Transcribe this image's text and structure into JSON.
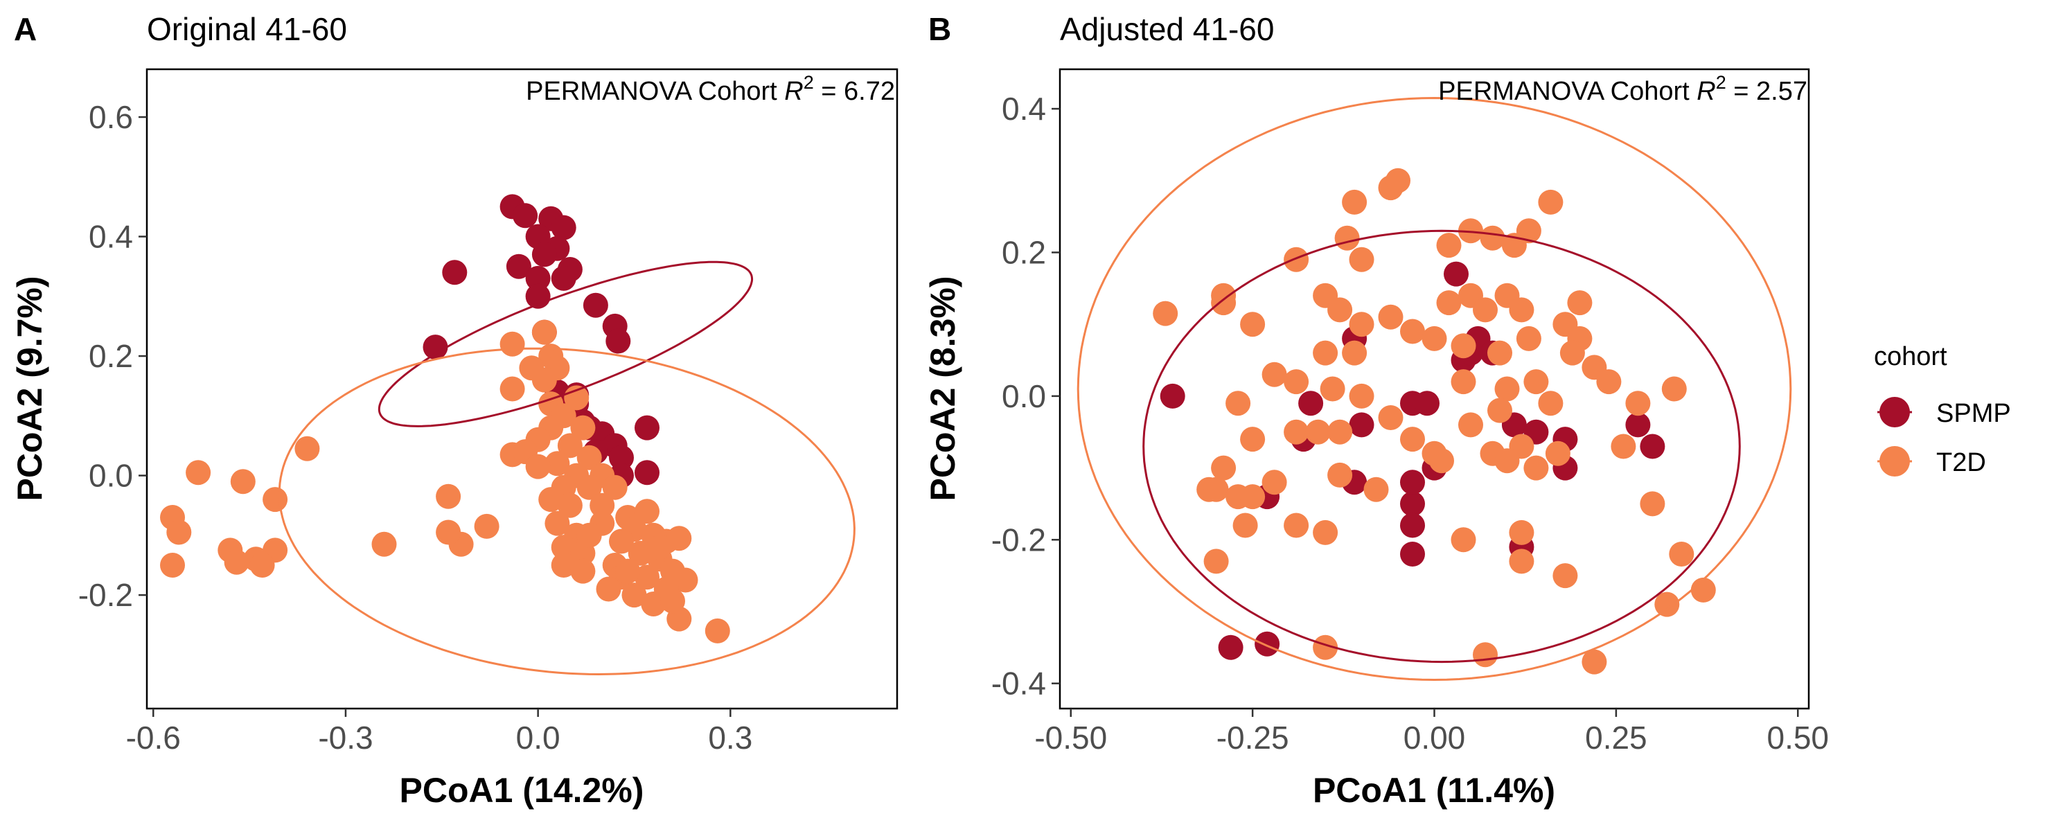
{
  "colors": {
    "SPMP": "#A50F2A",
    "T2D": "#F4834C",
    "axis_text": "#4D4D4D"
  },
  "legend": {
    "title": "cohort",
    "items": [
      {
        "label": "SPMP",
        "color": "#A50F2A"
      },
      {
        "label": "T2D",
        "color": "#F4834C"
      }
    ]
  },
  "chart_data": [
    {
      "type": "scatter",
      "panel_label": "A",
      "title": "Original 41-60",
      "annotation_prefix": "PERMANOVA Cohort ",
      "annotation_value": " = 6.72",
      "xlabel": "PCoA1 (14.2%)",
      "ylabel": "PCoA2 (9.7%)",
      "xlim": [
        -0.61,
        0.56
      ],
      "ylim": [
        -0.39,
        0.68
      ],
      "xticks": [
        -0.6,
        -0.3,
        0.0,
        0.3
      ],
      "xtick_labels": [
        "-0.6",
        "-0.3",
        "0.0",
        "0.3"
      ],
      "yticks": [
        -0.2,
        0.0,
        0.2,
        0.4,
        0.6
      ],
      "ytick_labels": [
        "-0.2",
        "0.0",
        "0.2",
        "0.4",
        "0.6"
      ],
      "grid": false,
      "ellipses": [
        {
          "series": "SPMP",
          "center": [
            0.043,
            0.22
          ],
          "semi_axes": [
            0.078,
            0.312
          ],
          "angle_deg": 112
        },
        {
          "series": "T2D",
          "center": [
            0.045,
            -0.06
          ],
          "semi_axes": [
            0.45,
            0.27
          ],
          "angle_deg": -6
        }
      ],
      "series": [
        {
          "name": "SPMP",
          "points": [
            [
              -0.04,
              0.45
            ],
            [
              -0.02,
              0.435
            ],
            [
              0.02,
              0.43
            ],
            [
              0.04,
              0.415
            ],
            [
              0.0,
              0.4
            ],
            [
              0.03,
              0.38
            ],
            [
              0.01,
              0.37
            ],
            [
              -0.03,
              0.35
            ],
            [
              0.05,
              0.345
            ],
            [
              -0.13,
              0.34
            ],
            [
              0.0,
              0.33
            ],
            [
              0.04,
              0.33
            ],
            [
              0.0,
              0.3
            ],
            [
              0.09,
              0.285
            ],
            [
              0.12,
              0.25
            ],
            [
              0.01,
              0.24
            ],
            [
              0.125,
              0.225
            ],
            [
              -0.16,
              0.215
            ],
            [
              0.03,
              0.14
            ],
            [
              0.06,
              0.135
            ],
            [
              0.06,
              0.12
            ],
            [
              0.03,
              0.115
            ],
            [
              0.05,
              0.105
            ],
            [
              0.07,
              0.09
            ],
            [
              0.08,
              0.08
            ],
            [
              0.17,
              0.08
            ],
            [
              0.1,
              0.07
            ],
            [
              0.12,
              0.05
            ],
            [
              0.13,
              0.03
            ],
            [
              0.09,
              0.04
            ],
            [
              0.17,
              0.005
            ],
            [
              0.13,
              0.0
            ]
          ]
        },
        {
          "name": "T2D",
          "points": [
            [
              0.01,
              0.24
            ],
            [
              -0.04,
              0.22
            ],
            [
              0.02,
              0.2
            ],
            [
              0.03,
              0.18
            ],
            [
              -0.01,
              0.18
            ],
            [
              0.01,
              0.16
            ],
            [
              -0.04,
              0.145
            ],
            [
              0.06,
              0.13
            ],
            [
              0.02,
              0.12
            ],
            [
              0.04,
              0.1
            ],
            [
              0.07,
              0.08
            ],
            [
              0.02,
              0.08
            ],
            [
              0.0,
              0.06
            ],
            [
              0.05,
              0.05
            ],
            [
              0.08,
              0.03
            ],
            [
              -0.04,
              0.035
            ],
            [
              -0.02,
              0.04
            ],
            [
              0.03,
              0.02
            ],
            [
              0.06,
              0.0
            ],
            [
              0.1,
              0.0
            ],
            [
              0.0,
              0.015
            ],
            [
              0.04,
              -0.02
            ],
            [
              0.08,
              -0.02
            ],
            [
              0.12,
              -0.02
            ],
            [
              0.02,
              -0.04
            ],
            [
              0.05,
              -0.05
            ],
            [
              0.1,
              -0.05
            ],
            [
              0.03,
              -0.08
            ],
            [
              0.06,
              -0.1
            ],
            [
              0.1,
              -0.08
            ],
            [
              0.14,
              -0.07
            ],
            [
              0.17,
              -0.06
            ],
            [
              0.15,
              -0.09
            ],
            [
              0.18,
              -0.1
            ],
            [
              0.13,
              -0.11
            ],
            [
              0.2,
              -0.11
            ],
            [
              0.22,
              -0.105
            ],
            [
              0.04,
              -0.12
            ],
            [
              0.07,
              -0.13
            ],
            [
              0.16,
              -0.13
            ],
            [
              0.19,
              -0.14
            ],
            [
              0.12,
              -0.15
            ],
            [
              0.13,
              -0.17
            ],
            [
              0.17,
              -0.17
            ],
            [
              0.21,
              -0.16
            ],
            [
              0.23,
              -0.175
            ],
            [
              0.11,
              -0.19
            ],
            [
              0.15,
              -0.2
            ],
            [
              0.2,
              -0.2
            ],
            [
              0.18,
              -0.215
            ],
            [
              0.22,
              -0.24
            ],
            [
              0.28,
              -0.26
            ],
            [
              0.08,
              -0.1
            ],
            [
              0.04,
              -0.15
            ],
            [
              0.07,
              -0.16
            ],
            [
              0.19,
              -0.12
            ],
            [
              0.2,
              -0.19
            ],
            [
              0.21,
              -0.21
            ],
            [
              0.14,
              -0.16
            ],
            [
              -0.36,
              0.045
            ],
            [
              -0.53,
              0.005
            ],
            [
              -0.46,
              -0.01
            ],
            [
              -0.41,
              -0.04
            ],
            [
              -0.57,
              -0.07
            ],
            [
              -0.56,
              -0.095
            ],
            [
              -0.48,
              -0.125
            ],
            [
              -0.41,
              -0.125
            ],
            [
              -0.44,
              -0.14
            ],
            [
              -0.47,
              -0.145
            ],
            [
              -0.43,
              -0.15
            ],
            [
              -0.57,
              -0.15
            ],
            [
              -0.24,
              -0.115
            ],
            [
              -0.12,
              -0.115
            ],
            [
              -0.08,
              -0.085
            ],
            [
              -0.14,
              -0.095
            ],
            [
              -0.14,
              -0.035
            ]
          ]
        }
      ]
    },
    {
      "type": "scatter",
      "panel_label": "B",
      "title": "Adjusted 41-60",
      "annotation_prefix": "PERMANOVA Cohort ",
      "annotation_value": " = 2.57",
      "xlabel": "PCoA1 (11.4%)",
      "ylabel": "PCoA2 (8.3%)",
      "xlim": [
        -0.515,
        0.515
      ],
      "ylim": [
        -0.435,
        0.455
      ],
      "xticks": [
        -0.5,
        -0.25,
        0.0,
        0.25,
        0.5
      ],
      "xtick_labels": [
        "-0.50",
        "-0.25",
        "0.00",
        "0.25",
        "0.50"
      ],
      "yticks": [
        -0.4,
        -0.2,
        0.0,
        0.2,
        0.4
      ],
      "ytick_labels": [
        "-0.4",
        "-0.2",
        "0.0",
        "0.2",
        "0.4"
      ],
      "grid": false,
      "ellipses": [
        {
          "series": "SPMP",
          "center": [
            0.01,
            -0.07
          ],
          "semi_axes": [
            0.41,
            0.3
          ],
          "angle_deg": 0
        },
        {
          "series": "T2D",
          "center": [
            0.0,
            0.01
          ],
          "semi_axes": [
            0.49,
            0.405
          ],
          "angle_deg": 0
        }
      ],
      "series": [
        {
          "name": "SPMP",
          "points": [
            [
              -0.36,
              0.0
            ],
            [
              -0.28,
              -0.35
            ],
            [
              -0.23,
              -0.345
            ],
            [
              -0.23,
              -0.14
            ],
            [
              -0.18,
              -0.06
            ],
            [
              -0.17,
              -0.01
            ],
            [
              -0.11,
              0.08
            ],
            [
              -0.1,
              -0.04
            ],
            [
              -0.11,
              -0.12
            ],
            [
              -0.03,
              -0.01
            ],
            [
              -0.01,
              -0.01
            ],
            [
              -0.03,
              -0.15
            ],
            [
              -0.03,
              -0.18
            ],
            [
              -0.03,
              -0.22
            ],
            [
              -0.03,
              -0.12
            ],
            [
              0.03,
              0.17
            ],
            [
              0.04,
              0.05
            ],
            [
              0.06,
              0.08
            ],
            [
              0.08,
              0.06
            ],
            [
              0.11,
              -0.04
            ],
            [
              0.14,
              -0.05
            ],
            [
              0.18,
              -0.06
            ],
            [
              0.18,
              -0.1
            ],
            [
              0.12,
              -0.21
            ],
            [
              0.28,
              -0.04
            ],
            [
              0.3,
              -0.07
            ],
            [
              0.05,
              0.06
            ],
            [
              0.0,
              -0.1
            ]
          ]
        },
        {
          "name": "T2D",
          "points": [
            [
              -0.37,
              0.115
            ],
            [
              -0.29,
              0.14
            ],
            [
              -0.29,
              0.13
            ],
            [
              -0.25,
              0.1
            ],
            [
              -0.19,
              0.19
            ],
            [
              -0.12,
              0.22
            ],
            [
              -0.1,
              0.19
            ],
            [
              -0.11,
              0.27
            ],
            [
              -0.06,
              0.29
            ],
            [
              -0.05,
              0.3
            ],
            [
              -0.15,
              0.14
            ],
            [
              -0.13,
              0.12
            ],
            [
              -0.1,
              0.1
            ],
            [
              -0.15,
              0.06
            ],
            [
              -0.11,
              0.06
            ],
            [
              -0.06,
              0.11
            ],
            [
              -0.03,
              0.09
            ],
            [
              0.0,
              0.08
            ],
            [
              0.04,
              0.07
            ],
            [
              0.02,
              0.13
            ],
            [
              0.05,
              0.14
            ],
            [
              0.07,
              0.12
            ],
            [
              0.1,
              0.14
            ],
            [
              0.12,
              0.12
            ],
            [
              0.05,
              0.23
            ],
            [
              0.02,
              0.21
            ],
            [
              0.08,
              0.22
            ],
            [
              0.11,
              0.21
            ],
            [
              0.13,
              0.23
            ],
            [
              0.16,
              0.27
            ],
            [
              0.09,
              0.06
            ],
            [
              0.13,
              0.08
            ],
            [
              0.18,
              0.1
            ],
            [
              0.2,
              0.13
            ],
            [
              0.2,
              0.08
            ],
            [
              0.19,
              0.06
            ],
            [
              0.22,
              0.04
            ],
            [
              -0.27,
              -0.01
            ],
            [
              -0.22,
              0.03
            ],
            [
              -0.19,
              0.02
            ],
            [
              -0.25,
              -0.06
            ],
            [
              -0.29,
              -0.1
            ],
            [
              -0.31,
              -0.13
            ],
            [
              -0.3,
              -0.13
            ],
            [
              -0.27,
              -0.14
            ],
            [
              -0.25,
              -0.14
            ],
            [
              -0.26,
              -0.18
            ],
            [
              -0.22,
              -0.12
            ],
            [
              -0.19,
              -0.05
            ],
            [
              -0.16,
              -0.05
            ],
            [
              -0.13,
              -0.05
            ],
            [
              -0.14,
              0.01
            ],
            [
              -0.1,
              0.0
            ],
            [
              -0.06,
              -0.03
            ],
            [
              -0.03,
              -0.06
            ],
            [
              0.0,
              -0.08
            ],
            [
              0.01,
              -0.09
            ],
            [
              0.04,
              0.02
            ],
            [
              0.05,
              -0.04
            ],
            [
              0.08,
              -0.08
            ],
            [
              0.1,
              0.01
            ],
            [
              0.14,
              0.02
            ],
            [
              0.16,
              -0.01
            ],
            [
              0.12,
              -0.07
            ],
            [
              0.14,
              -0.1
            ],
            [
              0.17,
              -0.08
            ],
            [
              0.24,
              0.02
            ],
            [
              0.26,
              -0.07
            ],
            [
              0.28,
              -0.01
            ],
            [
              0.33,
              0.01
            ],
            [
              0.3,
              -0.15
            ],
            [
              0.34,
              -0.22
            ],
            [
              0.37,
              -0.27
            ],
            [
              0.32,
              -0.29
            ],
            [
              0.22,
              -0.37
            ],
            [
              0.07,
              -0.36
            ],
            [
              -0.15,
              -0.35
            ],
            [
              -0.3,
              -0.23
            ],
            [
              -0.19,
              -0.18
            ],
            [
              -0.15,
              -0.19
            ],
            [
              -0.13,
              -0.11
            ],
            [
              -0.08,
              -0.13
            ],
            [
              0.04,
              -0.2
            ],
            [
              0.12,
              -0.19
            ],
            [
              0.12,
              -0.23
            ],
            [
              0.18,
              -0.25
            ],
            [
              0.09,
              -0.02
            ],
            [
              0.1,
              -0.09
            ]
          ]
        }
      ]
    }
  ]
}
